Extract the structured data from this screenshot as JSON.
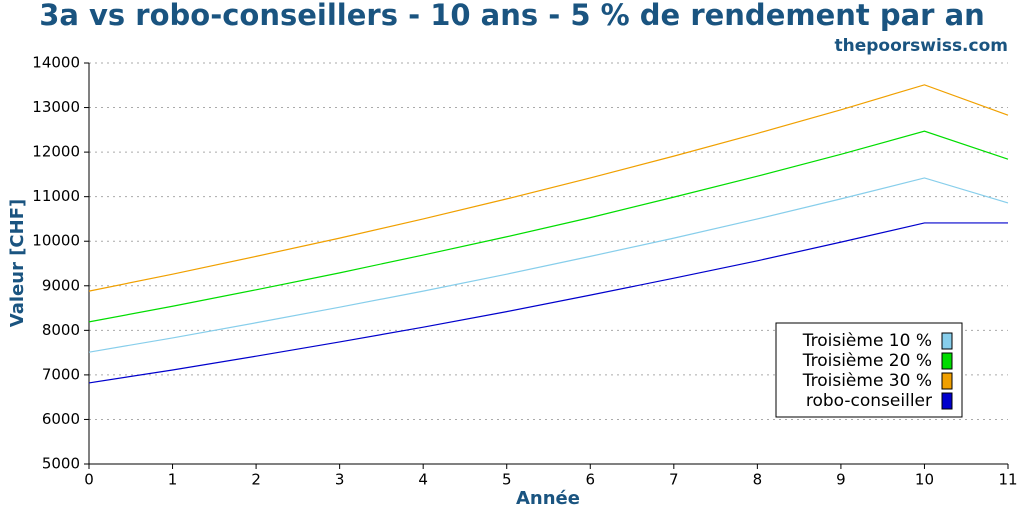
{
  "chart_data": {
    "type": "line",
    "title": "3a vs robo-conseillers - 10 ans - 5 % de rendement par an",
    "source": "thepoorswiss.com",
    "x_label": "Année",
    "y_label": "Valeur [CHF]",
    "x": [
      0,
      1,
      2,
      3,
      4,
      5,
      6,
      7,
      8,
      9,
      10,
      11
    ],
    "series": [
      {
        "name": "Troisième 10 %",
        "color": "#87ceeb",
        "values": [
          7510,
          7830,
          8170,
          8520,
          8880,
          9260,
          9660,
          10070,
          10500,
          10950,
          11420,
          10860
        ]
      },
      {
        "name": "Troisième 20 %",
        "color": "#00dd00",
        "values": [
          8190,
          8540,
          8910,
          9290,
          9690,
          10100,
          10530,
          10990,
          11460,
          11950,
          12470,
          11840
        ]
      },
      {
        "name": "Troisième 30 %",
        "color": "#f0a000",
        "values": [
          8880,
          9260,
          9660,
          10070,
          10500,
          10950,
          11420,
          11910,
          12420,
          12950,
          13510,
          12830
        ]
      },
      {
        "name": "robo-conseiller",
        "color": "#0000cc",
        "values": [
          6820,
          7110,
          7420,
          7740,
          8070,
          8420,
          8790,
          9170,
          9560,
          9980,
          10410,
          10410
        ]
      }
    ],
    "xlim": [
      0,
      11
    ],
    "xticks": [
      0,
      1,
      2,
      3,
      4,
      5,
      6,
      7,
      8,
      9,
      10,
      11
    ],
    "ylim": [
      5000,
      14000
    ],
    "yticks": [
      5000,
      6000,
      7000,
      8000,
      9000,
      10000,
      11000,
      12000,
      13000,
      14000
    ],
    "grid": true,
    "legend": "lower-right"
  }
}
